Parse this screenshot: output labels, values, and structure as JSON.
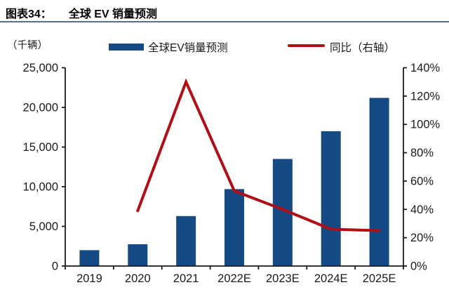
{
  "header": {
    "figure_label": "图表34：",
    "figure_title": "全球 EV 销量预测"
  },
  "colors": {
    "bar": "#164A84",
    "line": "#B00F15",
    "rule": "#52718E",
    "axis_text": "#1A1A1A",
    "axis_line": "#1A1A1A"
  },
  "chart": {
    "unit_label": "（千辆）",
    "legend_bar_label": "全球EV销量预测",
    "legend_line_label": "同比（右轴）"
  },
  "chart_data": {
    "type": "bar+line combo",
    "title": "全球 EV 销量预测",
    "unit": "千辆",
    "categories": [
      "2019",
      "2020",
      "2021",
      "2022E",
      "2023E",
      "2024E",
      "2025E"
    ],
    "series": [
      {
        "name": "全球EV销量预测",
        "type": "bar",
        "axis": "left",
        "values": [
          2000,
          2750,
          6300,
          9700,
          13500,
          17000,
          21200
        ]
      },
      {
        "name": "同比（右轴）",
        "type": "line",
        "axis": "right",
        "values": [
          null,
          39,
          130,
          53,
          40,
          26,
          25
        ]
      }
    ],
    "left_axis": {
      "label": "（千辆）",
      "min": 0,
      "max": 25000,
      "tick_step": 5000,
      "tick_labels": [
        "0",
        "5,000",
        "10,000",
        "15,000",
        "20,000",
        "25,000"
      ]
    },
    "right_axis": {
      "label": "同比",
      "min": 0,
      "max": 140,
      "tick_step": 20,
      "tick_labels": [
        "0%",
        "20%",
        "40%",
        "60%",
        "80%",
        "100%",
        "120%",
        "140%"
      ]
    },
    "grid": false,
    "legend_position": "top"
  }
}
